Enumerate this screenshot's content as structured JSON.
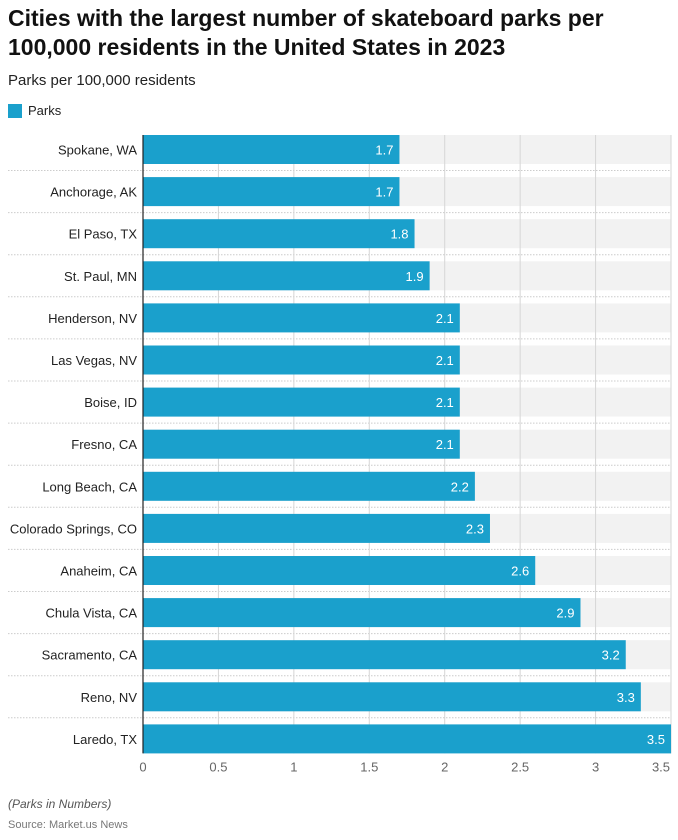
{
  "title": "Cities with the largest number of skateboard parks per 100,000 residents in the United States in 2023",
  "subtitle": "Parks per 100,000 residents",
  "note": "(Parks in Numbers)",
  "source": "Source: Market.us News",
  "chart_data": {
    "type": "bar",
    "orientation": "horizontal",
    "categories": [
      "Spokane, WA",
      "Anchorage, AK",
      "El Paso, TX",
      "St. Paul, MN",
      "Henderson, NV",
      "Las Vegas, NV",
      "Boise, ID",
      "Fresno, CA",
      "Long Beach, CA",
      "Colorado Springs, CO",
      "Anaheim, CA",
      "Chula Vista, CA",
      "Sacramento, CA",
      "Reno, NV",
      "Laredo, TX"
    ],
    "series": [
      {
        "name": "Parks",
        "values": [
          1.7,
          1.7,
          1.8,
          1.9,
          2.1,
          2.1,
          2.1,
          2.1,
          2.2,
          2.3,
          2.6,
          2.9,
          3.2,
          3.3,
          3.5
        ],
        "color": "#1aa0cc"
      }
    ],
    "xlim": [
      0,
      3.5
    ],
    "xticks": [
      "0",
      "0.5",
      "1",
      "1.5",
      "2",
      "2.5",
      "3",
      "3.5"
    ],
    "grid": true,
    "legend": "top-left",
    "data_labels": true
  }
}
